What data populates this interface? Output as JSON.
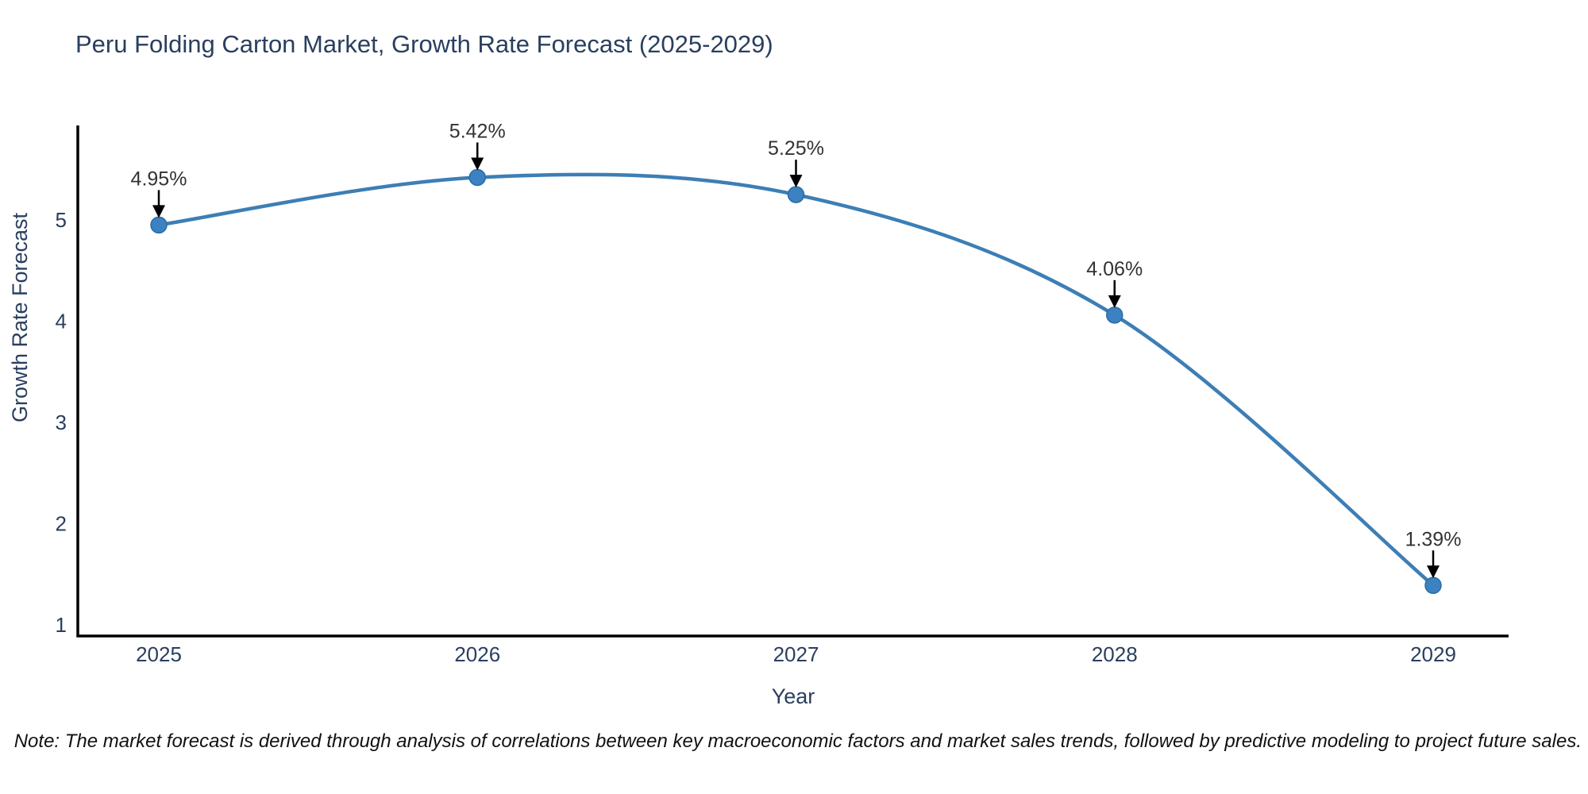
{
  "chart_data": {
    "type": "line",
    "title": "Peru Folding Carton Market, Growth Rate Forecast (2025-2029)",
    "xlabel": "Year",
    "ylabel": "Growth Rate Forecast",
    "categories": [
      "2025",
      "2026",
      "2027",
      "2028",
      "2029"
    ],
    "values": [
      4.95,
      5.42,
      5.25,
      4.06,
      1.39
    ],
    "point_labels": [
      "4.95%",
      "5.42%",
      "5.25%",
      "4.06%",
      "1.39%"
    ],
    "yticks": [
      1,
      2,
      3,
      4,
      5
    ],
    "ylim": [
      0.9,
      6.0
    ],
    "line_shape": "spline",
    "grid": false,
    "legend": "none",
    "colors": {
      "line": "#3d7eb5",
      "marker_fill": "#3c82c2",
      "marker_edge": "#2a6da3",
      "axis_line": "#000000",
      "tick_text": "#2a3f5f",
      "title_text": "#2a3f5f",
      "annotation": "#333333",
      "arrow": "#000000",
      "background": "#ffffff"
    }
  },
  "note": "Note: The market forecast is derived through analysis of correlations between key macroeconomic factors and market sales trends, followed by predictive modeling to project future sales."
}
